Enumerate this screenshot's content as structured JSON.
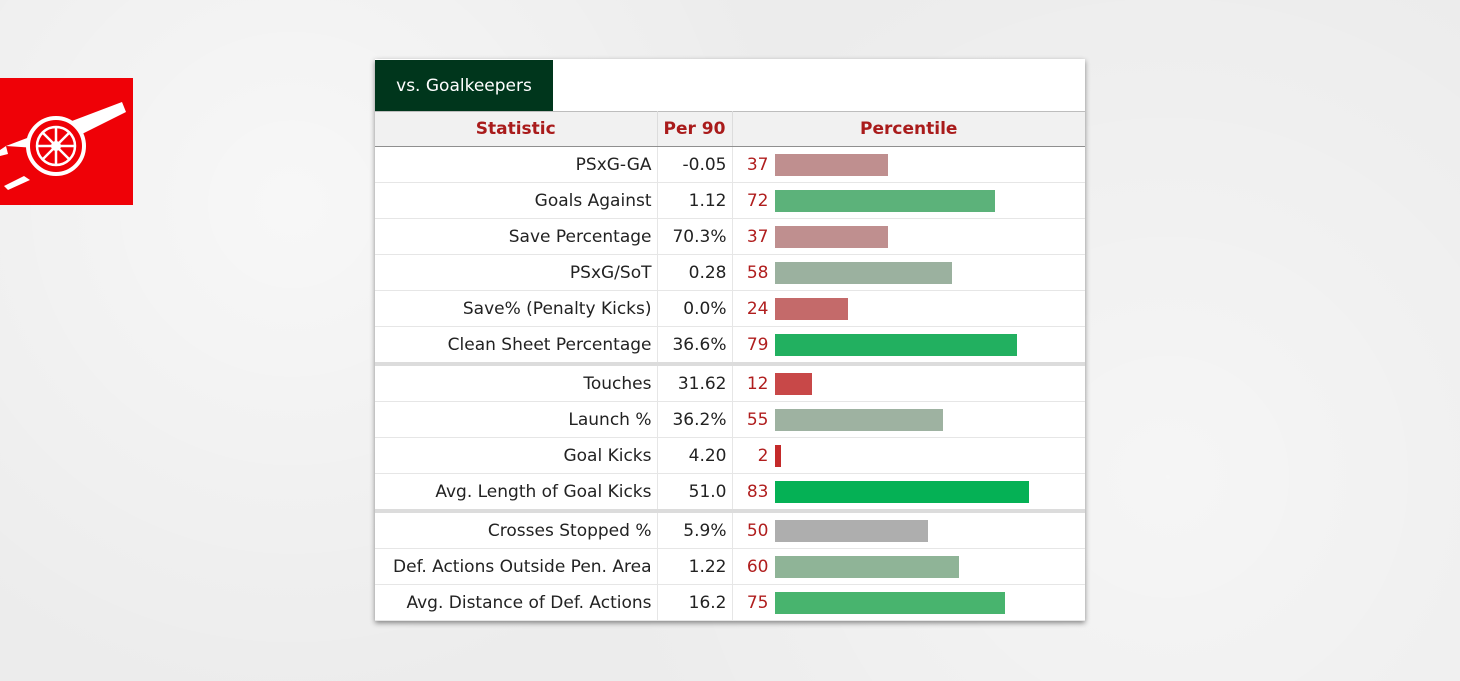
{
  "tab": {
    "label": "vs. Goalkeepers"
  },
  "table": {
    "headers": {
      "statistic": "Statistic",
      "per90": "Per 90",
      "percentile": "Percentile"
    }
  },
  "chart_data": {
    "type": "bar",
    "title": "",
    "xlim": [
      0,
      100
    ],
    "rows": [
      {
        "group": 0,
        "stat": "PSxG-GA",
        "per90": "-0.05",
        "percentile": 37,
        "color": "#bf8f8f"
      },
      {
        "group": 0,
        "stat": "Goals Against",
        "per90": "1.12",
        "percentile": 72,
        "color": "#5cb27a"
      },
      {
        "group": 0,
        "stat": "Save Percentage",
        "per90": "70.3%",
        "percentile": 37,
        "color": "#bf8f8f"
      },
      {
        "group": 0,
        "stat": "PSxG/SoT",
        "per90": "0.28",
        "percentile": 58,
        "color": "#9bb19f"
      },
      {
        "group": 0,
        "stat": "Save% (Penalty Kicks)",
        "per90": "0.0%",
        "percentile": 24,
        "color": "#c46a6a"
      },
      {
        "group": 0,
        "stat": "Clean Sheet Percentage",
        "per90": "36.6%",
        "percentile": 79,
        "color": "#22b060"
      },
      {
        "group": 1,
        "stat": "Touches",
        "per90": "31.62",
        "percentile": 12,
        "color": "#c84848"
      },
      {
        "group": 1,
        "stat": "Launch %",
        "per90": "36.2%",
        "percentile": 55,
        "color": "#9eb2a1"
      },
      {
        "group": 1,
        "stat": "Goal Kicks",
        "per90": "4.20",
        "percentile": 2,
        "color": "#c42a2a"
      },
      {
        "group": 1,
        "stat": "Avg. Length of Goal Kicks",
        "per90": "51.0",
        "percentile": 83,
        "color": "#05b155"
      },
      {
        "group": 2,
        "stat": "Crosses Stopped %",
        "per90": "5.9%",
        "percentile": 50,
        "color": "#aeaeae"
      },
      {
        "group": 2,
        "stat": "Def. Actions Outside Pen. Area",
        "per90": "1.22",
        "percentile": 60,
        "color": "#8fb497"
      },
      {
        "group": 2,
        "stat": "Avg. Distance of Def. Actions",
        "per90": "16.2",
        "percentile": 75,
        "color": "#48b46e"
      }
    ]
  }
}
